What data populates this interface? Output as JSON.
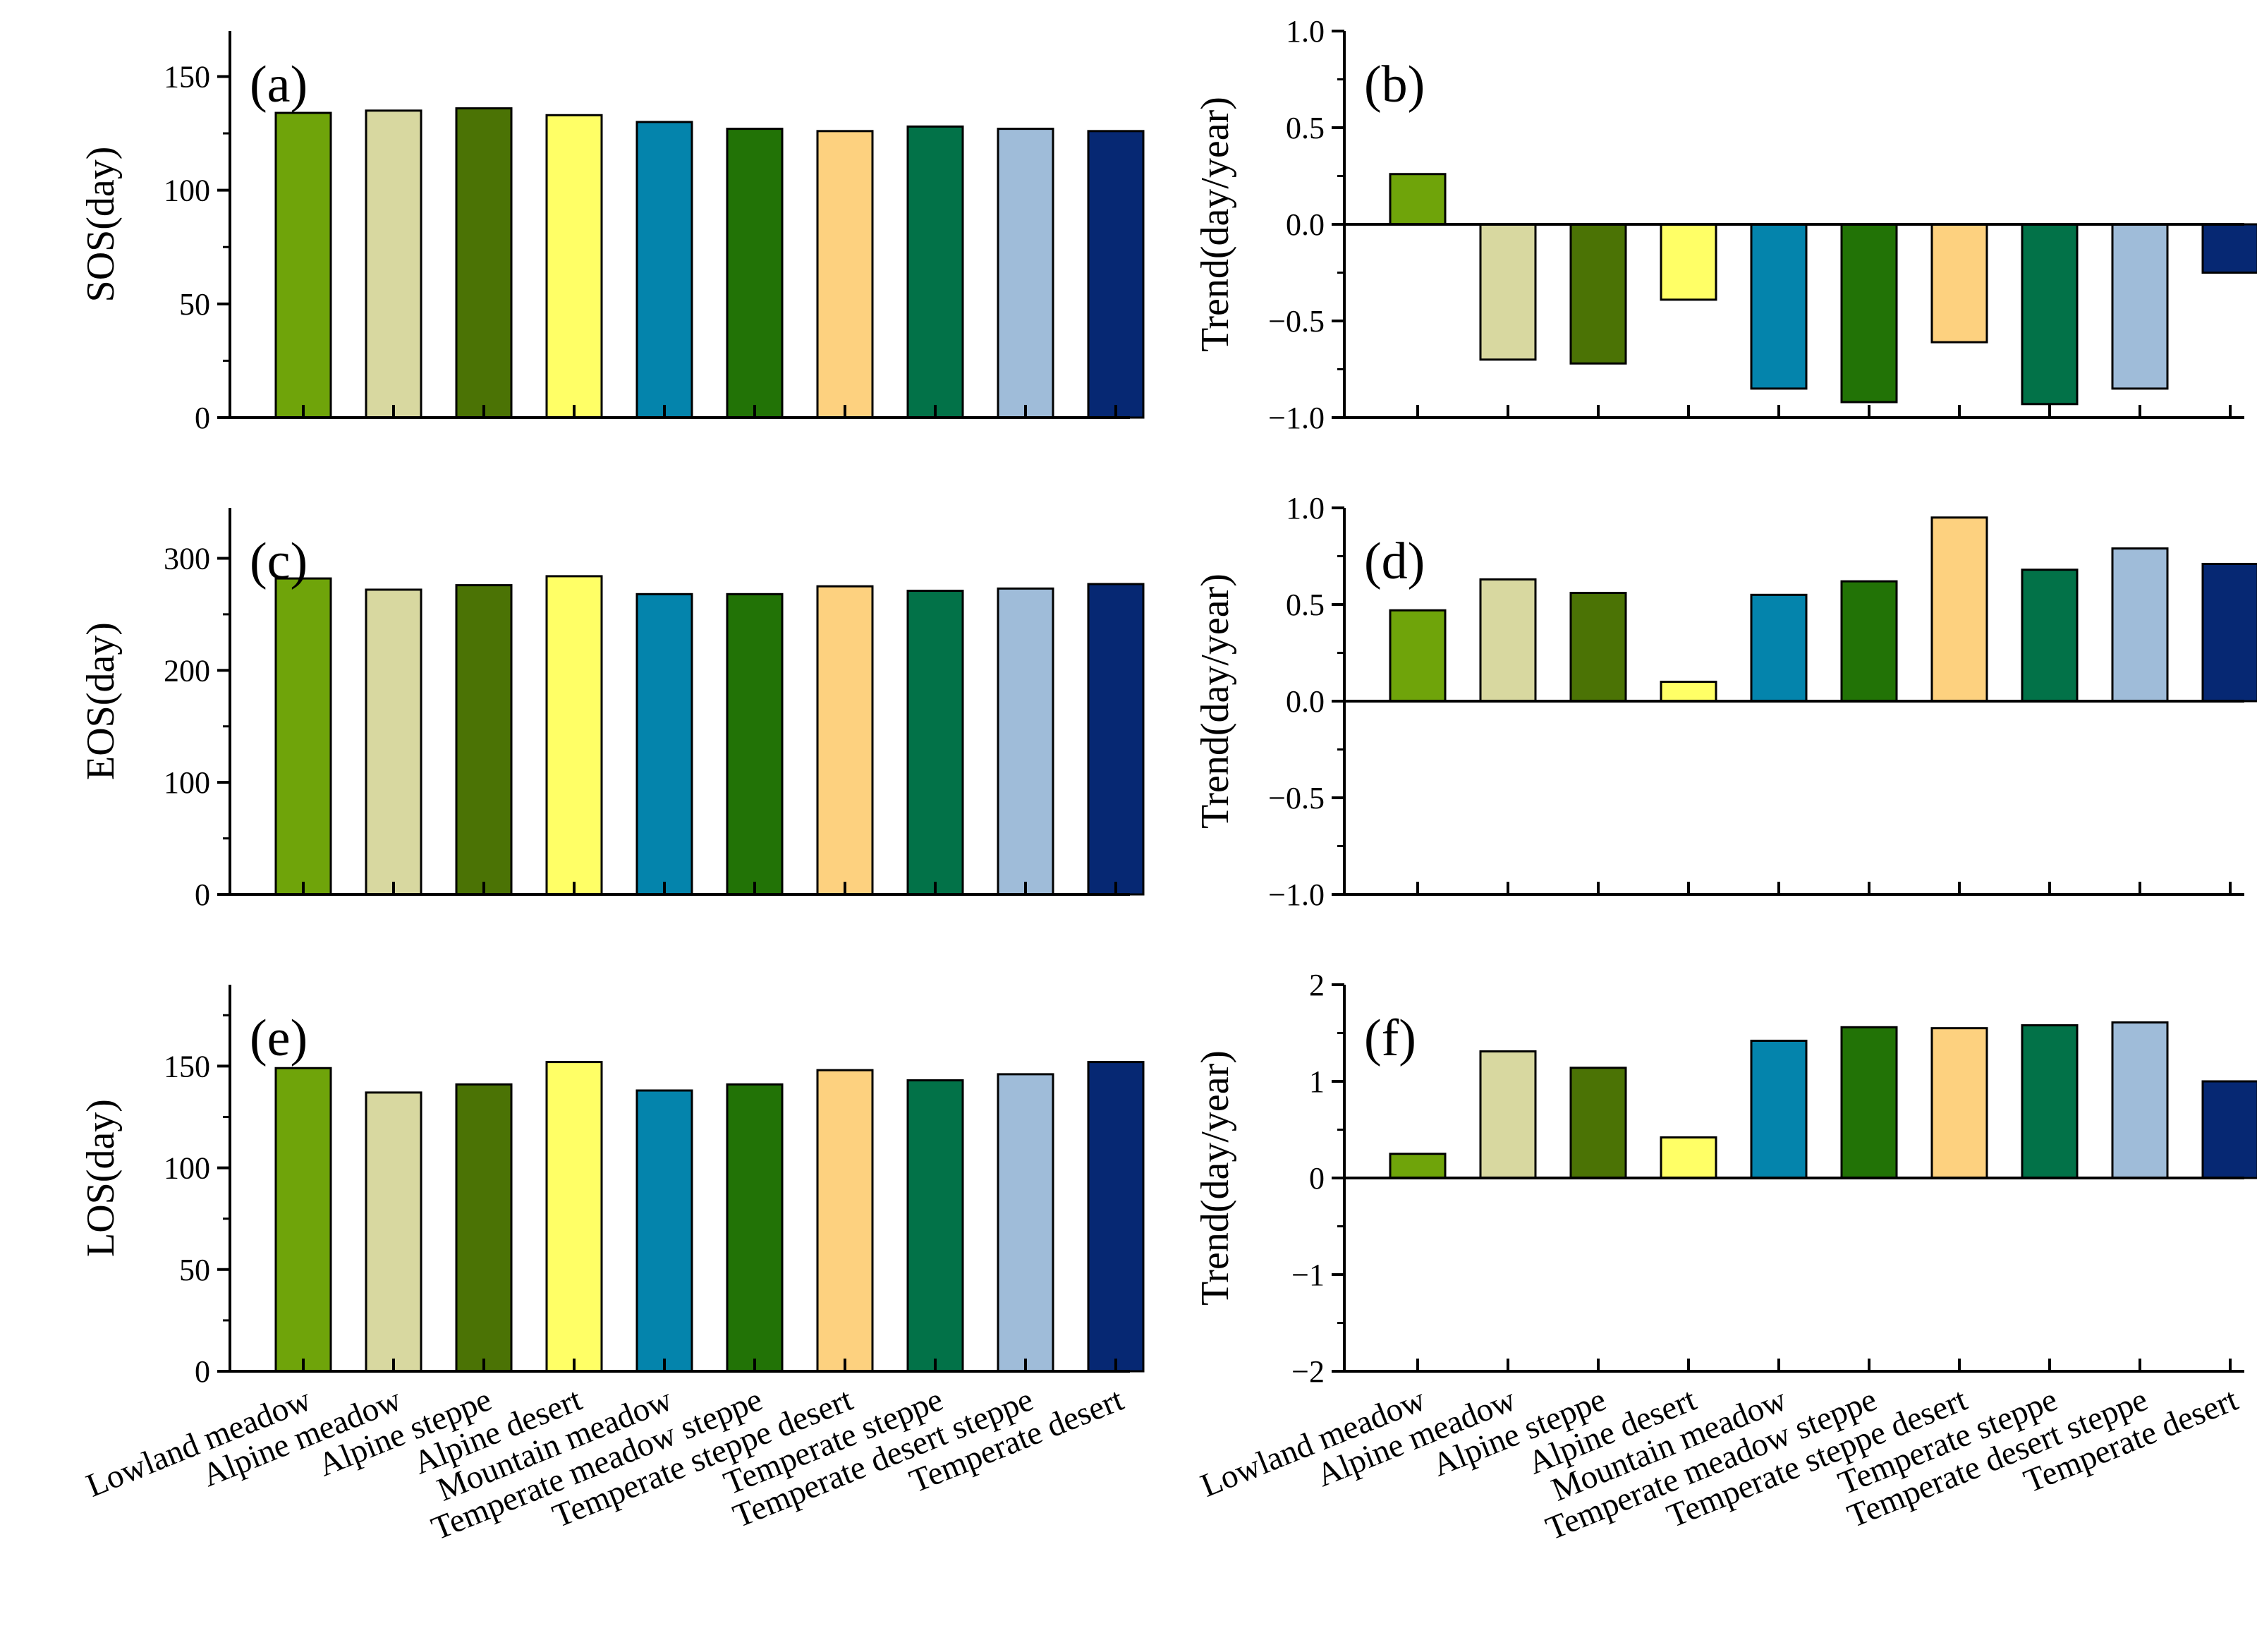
{
  "categories": [
    "Lowland meadow",
    "Alpine meadow",
    "Alpine steppe",
    "Alpine desert",
    "Mountain meadow",
    "Temperate meadow steppe",
    "Temperate steppe desert",
    "Temperate steppe",
    "Temperate desert steppe",
    "Temperate desert"
  ],
  "colors": [
    "#6fa40a",
    "#d8d8a0",
    "#4b7305",
    "#ffff66",
    "#0484ac",
    "#227306",
    "#fdd17f",
    "#027248",
    "#9fbcd9",
    "#062873"
  ],
  "chart_data": [
    {
      "id": "a",
      "panel_label": "(a)",
      "type": "bar",
      "ylabel": "SOS(day)",
      "ylim": [
        0,
        170
      ],
      "yticks": [
        0,
        50,
        100,
        150
      ],
      "ytick_labels": [
        "0",
        "50",
        "100",
        "150"
      ],
      "values": [
        134,
        135,
        136,
        133,
        130,
        127,
        126,
        128,
        127,
        126
      ]
    },
    {
      "id": "b",
      "panel_label": "(b)",
      "type": "bar",
      "ylabel": "Trend(day/year)",
      "ylim": [
        -1.0,
        1.0
      ],
      "yticks": [
        -1.0,
        -0.5,
        0.0,
        0.5,
        1.0
      ],
      "ytick_labels": [
        "−1.0",
        "−0.5",
        "0.0",
        "0.5",
        "1.0"
      ],
      "values": [
        0.26,
        -0.7,
        -0.72,
        -0.39,
        -0.85,
        -0.92,
        -0.61,
        -0.93,
        -0.85,
        -0.25
      ]
    },
    {
      "id": "c",
      "panel_label": "(c)",
      "type": "bar",
      "ylabel": "EOS(day)",
      "ylim": [
        0,
        345
      ],
      "yticks": [
        0,
        100,
        200,
        300
      ],
      "ytick_labels": [
        "0",
        "100",
        "200",
        "300"
      ],
      "values": [
        282,
        272,
        276,
        284,
        268,
        268,
        275,
        271,
        273,
        277
      ]
    },
    {
      "id": "d",
      "panel_label": "(d)",
      "type": "bar",
      "ylabel": "Trend(day/year)",
      "ylim": [
        -1.0,
        1.0
      ],
      "yticks": [
        -1.0,
        -0.5,
        0.0,
        0.5,
        1.0
      ],
      "ytick_labels": [
        "−1.0",
        "−0.5",
        "0.0",
        "0.5",
        "1.0"
      ],
      "values": [
        0.47,
        0.63,
        0.56,
        0.1,
        0.55,
        0.62,
        0.95,
        0.68,
        0.79,
        0.71
      ]
    },
    {
      "id": "e",
      "panel_label": "(e)",
      "type": "bar",
      "ylabel": "LOS(day)",
      "ylim": [
        0,
        190
      ],
      "yticks": [
        0,
        50,
        100,
        150
      ],
      "ytick_labels": [
        "0",
        "50",
        "100",
        "150"
      ],
      "values": [
        149,
        137,
        141,
        152,
        138,
        141,
        148,
        143,
        146,
        152
      ]
    },
    {
      "id": "f",
      "panel_label": "(f)",
      "type": "bar",
      "ylabel": "Trend(day/year)",
      "ylim": [
        -2,
        2
      ],
      "yticks": [
        -2,
        -1,
        0,
        1,
        2
      ],
      "ytick_labels": [
        "−2",
        "−1",
        "0",
        "1",
        "2"
      ],
      "values": [
        0.25,
        1.31,
        1.14,
        0.42,
        1.42,
        1.56,
        1.55,
        1.58,
        1.61,
        1.0
      ]
    }
  ]
}
